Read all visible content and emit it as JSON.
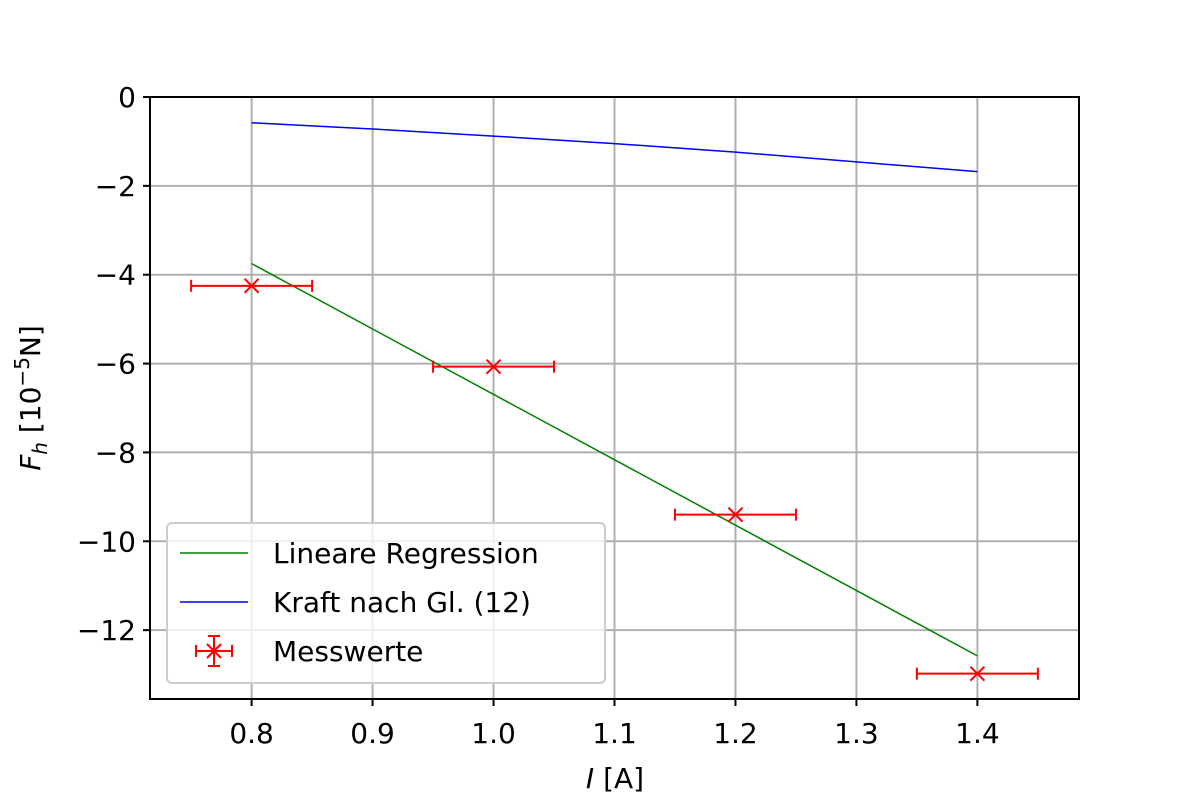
{
  "chart_data": {
    "type": "scatter",
    "xlabel": {
      "symbol": "I",
      "unit": " [A]"
    },
    "ylabel": {
      "symbol": "F",
      "subscript": "h",
      "unit_prefix": " [10",
      "unit_exponent": "−5",
      "unit_suffix": "N]"
    },
    "xlim": [
      0.716,
      1.484
    ],
    "ylim": [
      -13.55,
      0
    ],
    "x_ticks": [
      0.8,
      0.9,
      1.0,
      1.1,
      1.2,
      1.3,
      1.4
    ],
    "x_tick_labels": [
      "0.8",
      "0.9",
      "1.0",
      "1.1",
      "1.2",
      "1.3",
      "1.4"
    ],
    "y_ticks": [
      0,
      -2,
      -4,
      -6,
      -8,
      -10,
      -12
    ],
    "y_tick_labels": [
      "0",
      "−2",
      "−4",
      "−6",
      "−8",
      "−10",
      "−12"
    ],
    "grid": true,
    "legend_position": "lower-left",
    "series": [
      {
        "name": "Lineare Regression",
        "kind": "line",
        "color": "#008000",
        "x": [
          0.8,
          1.4
        ],
        "y": [
          -3.75,
          -12.58
        ]
      },
      {
        "name": "Kraft nach Gl. (12)",
        "kind": "line",
        "color": "#0000ff",
        "x": [
          0.8,
          0.9,
          1.0,
          1.1,
          1.2,
          1.3,
          1.4
        ],
        "y": [
          -0.58,
          -0.72,
          -0.88,
          -1.05,
          -1.24,
          -1.46,
          -1.68
        ]
      },
      {
        "name": "Messwerte",
        "kind": "errorbar",
        "marker": "x",
        "color": "#ff0000",
        "x": [
          0.8,
          1.0,
          1.2,
          1.4
        ],
        "y": [
          -4.25,
          -6.07,
          -9.4,
          -12.98
        ],
        "xerr": [
          0.05,
          0.05,
          0.05,
          0.05
        ]
      }
    ]
  }
}
